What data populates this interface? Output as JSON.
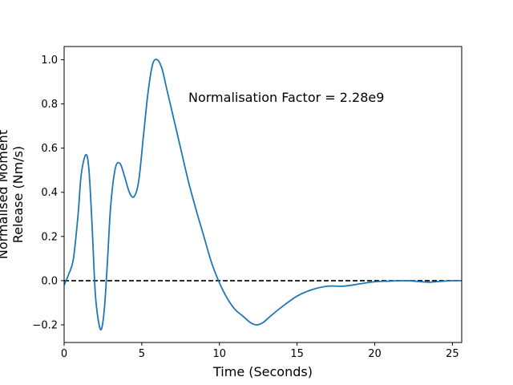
{
  "chart_data": {
    "type": "line",
    "xlabel": "Time (Seconds)",
    "ylabel_lines": [
      "Normalised Moment",
      "Release (Nm/s)"
    ],
    "annotation": {
      "text": "Normalisation Factor = 2.28e9",
      "x": 8.0,
      "y": 0.81
    },
    "xlim": [
      0,
      25.6
    ],
    "ylim": [
      -0.28,
      1.06
    ],
    "xticks": [
      0,
      5,
      10,
      15,
      20,
      25
    ],
    "yticks": [
      -0.2,
      0.0,
      0.2,
      0.4,
      0.6,
      0.8,
      1.0
    ],
    "grid": false,
    "reference_line": {
      "y": 0.0,
      "style": "dashed",
      "color": "#000000"
    },
    "series": [
      {
        "color": "#1f77b4",
        "x": [
          0,
          0.3,
          0.6,
          0.9,
          1.1,
          1.4,
          1.6,
          1.8,
          2.0,
          2.2,
          2.4,
          2.6,
          2.8,
          3.0,
          3.3,
          3.6,
          3.9,
          4.2,
          4.5,
          4.8,
          5.1,
          5.4,
          5.7,
          6.0,
          6.3,
          6.6,
          7.0,
          7.5,
          8.0,
          8.5,
          9.0,
          9.5,
          10.0,
          10.5,
          11.0,
          11.5,
          12.0,
          12.4,
          12.8,
          13.3,
          14.0,
          15.0,
          16.0,
          17.0,
          18.0,
          19.0,
          20.0,
          21.0,
          22.0,
          23.0,
          23.5,
          24.0,
          25.0,
          25.6
        ],
        "y": [
          -0.02,
          0.03,
          0.1,
          0.3,
          0.48,
          0.57,
          0.5,
          0.25,
          -0.05,
          -0.18,
          -0.22,
          -0.12,
          0.1,
          0.34,
          0.51,
          0.53,
          0.47,
          0.4,
          0.38,
          0.45,
          0.65,
          0.85,
          0.98,
          1.0,
          0.96,
          0.87,
          0.75,
          0.6,
          0.45,
          0.32,
          0.2,
          0.08,
          -0.01,
          -0.08,
          -0.13,
          -0.16,
          -0.19,
          -0.2,
          -0.19,
          -0.16,
          -0.12,
          -0.07,
          -0.04,
          -0.025,
          -0.025,
          -0.015,
          -0.005,
          -0.002,
          0.0,
          -0.005,
          -0.007,
          -0.005,
          0.0,
          0.0
        ]
      }
    ]
  }
}
